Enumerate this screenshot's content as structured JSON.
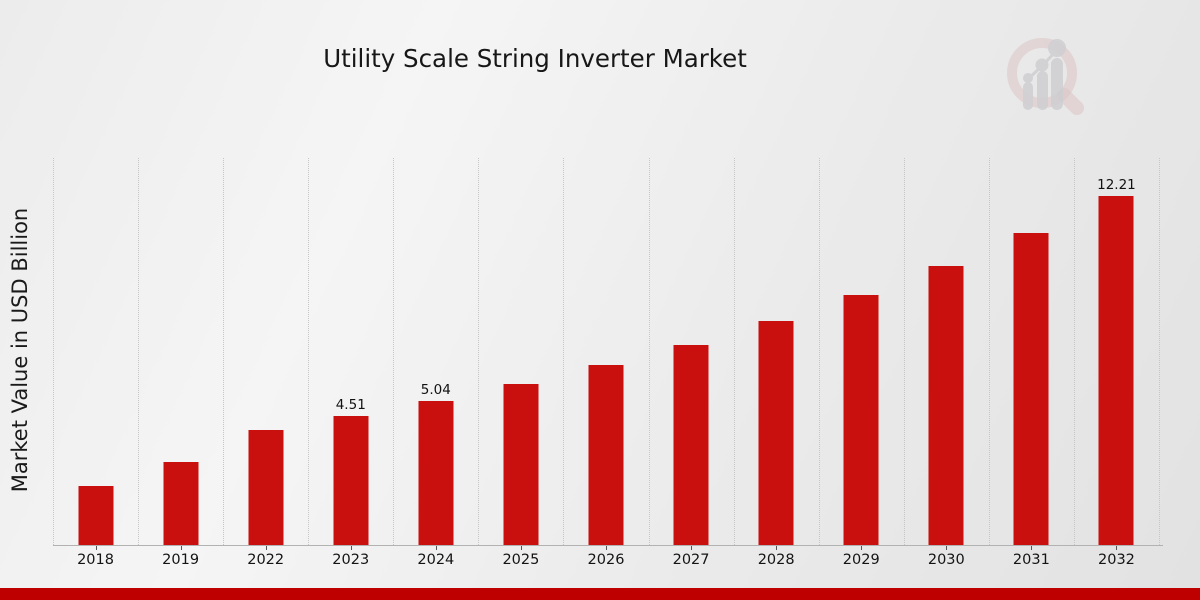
{
  "title": "Utility Scale String Inverter Market",
  "colors": {
    "bar": "#CA0F0F",
    "bottom_strip": "#BE0000",
    "gridline": "#c6c6c6",
    "axis_line": "#b2b2b2",
    "text": "#1a1a1a"
  },
  "watermark": "market-research-future-logo",
  "chart_data": {
    "type": "bar",
    "title": "Utility Scale String Inverter Market",
    "xlabel": "",
    "ylabel": "Market Value in USD Billion",
    "categories": [
      "2018",
      "2019",
      "2022",
      "2023",
      "2024",
      "2025",
      "2026",
      "2027",
      "2028",
      "2029",
      "2030",
      "2031",
      "2032"
    ],
    "values": [
      2.06,
      2.9,
      4.04,
      4.51,
      5.04,
      5.63,
      6.29,
      7.02,
      7.84,
      8.76,
      9.78,
      10.93,
      12.21
    ],
    "bar_labels": [
      "",
      "",
      "",
      "4.51",
      "5.04",
      "",
      "",
      "",
      "",
      "",
      "",
      "",
      "12.21"
    ],
    "ylim": [
      0,
      13.55
    ],
    "y_tick_labels_shown": false,
    "grid": "vertical dotted lines at category boundaries",
    "legend": "none",
    "bar_color": "#CA0F0F"
  }
}
